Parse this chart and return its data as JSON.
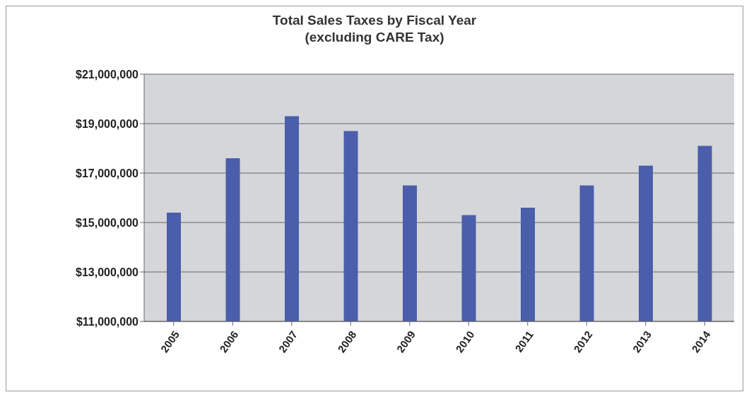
{
  "chart_data": {
    "type": "bar",
    "title": "Total Sales Taxes by Fiscal Year",
    "subtitle": "(excluding CARE Tax)",
    "categories": [
      "2005",
      "2006",
      "2007",
      "2008",
      "2009",
      "2010",
      "2011",
      "2012",
      "2013",
      "2014"
    ],
    "values": [
      15400000,
      17600000,
      19300000,
      18700000,
      16500000,
      15300000,
      15600000,
      16500000,
      17300000,
      18100000
    ],
    "color": "#4a5eab",
    "ylim": [
      11000000,
      21000000
    ],
    "yticks": [
      {
        "value": 11000000,
        "label": "$11,000,000"
      },
      {
        "value": 13000000,
        "label": "$13,000,000"
      },
      {
        "value": 15000000,
        "label": "$15,000,000"
      },
      {
        "value": 17000000,
        "label": "$17,000,000"
      },
      {
        "value": 19000000,
        "label": "$19,000,000"
      },
      {
        "value": 21000000,
        "label": "$21,000,000"
      }
    ],
    "grid": "y"
  }
}
